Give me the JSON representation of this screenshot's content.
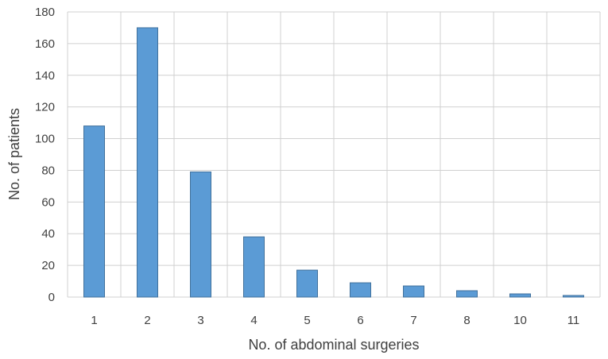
{
  "chart_data": {
    "type": "bar",
    "title": "",
    "xlabel": "No. of abdominal surgeries",
    "ylabel": "No. of patients",
    "categories": [
      "1",
      "2",
      "3",
      "4",
      "5",
      "6",
      "7",
      "8",
      "10",
      "11"
    ],
    "values": [
      108,
      170,
      79,
      38,
      17,
      9,
      7,
      4,
      2,
      1
    ],
    "ylim": [
      0,
      180
    ],
    "yticks": [
      0,
      20,
      40,
      60,
      80,
      100,
      120,
      140,
      160,
      180
    ],
    "grid": true,
    "legend": "none",
    "colors": {
      "bar_fill": "#5B9BD5",
      "bar_stroke": "#41719C",
      "grid": "#D0D0D0",
      "text": "#404040"
    }
  }
}
